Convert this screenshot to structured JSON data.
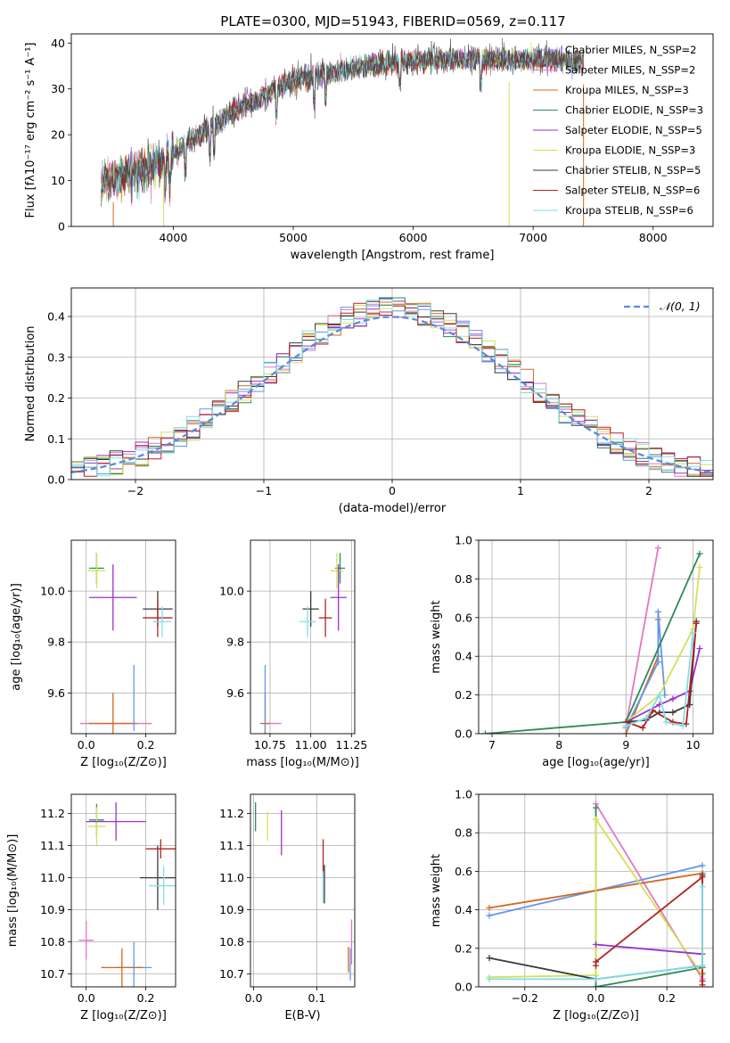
{
  "figure": {
    "title": "PLATE=0300, MJD=51943, FIBERID=0569, z=0.117"
  },
  "chart_data": [
    {
      "id": "spectrum",
      "type": "line",
      "title": "PLATE=0300, MJD=51943, FIBERID=0569, z=0.117",
      "xlabel": "wavelength [Angstrom, rest frame]",
      "ylabel": "Flux [fλ10⁻¹⁷ erg cm⁻² s⁻¹ A⁻¹]",
      "xlim": [
        3150,
        8500
      ],
      "ylim": [
        0,
        42
      ],
      "xticks": [
        4000,
        5000,
        6000,
        7000,
        8000
      ],
      "yticks": [
        0,
        10,
        20,
        30,
        40
      ],
      "grid": false,
      "legend_position": "right",
      "spectrum_x_range": [
        3400,
        7420
      ],
      "spectrum_shape": [
        [
          3400,
          9
        ],
        [
          3600,
          11.5
        ],
        [
          3800,
          13
        ],
        [
          3950,
          14.5
        ],
        [
          4100,
          18
        ],
        [
          4300,
          21.5
        ],
        [
          4500,
          25
        ],
        [
          4800,
          29
        ],
        [
          5000,
          32
        ],
        [
          5300,
          33.5
        ],
        [
          5600,
          35
        ],
        [
          6000,
          36
        ],
        [
          6300,
          36.3
        ],
        [
          6600,
          36.5
        ],
        [
          7000,
          36.4
        ],
        [
          7420,
          36
        ]
      ],
      "series": [
        {
          "name": "Chabrier MILES, N_SSP=2",
          "color": "#6495ed"
        },
        {
          "name": "Salpeter MILES, N_SSP=2",
          "color": "#e377c2"
        },
        {
          "name": "Kroupa MILES, N_SSP=3",
          "color": "#d2691e"
        },
        {
          "name": "Chabrier ELODIE, N_SSP=3",
          "color": "#2e8b57"
        },
        {
          "name": "Salpeter ELODIE, N_SSP=5",
          "color": "#9932cc"
        },
        {
          "name": "Kroupa ELODIE, N_SSP=3",
          "color": "#d4e157"
        },
        {
          "name": "Chabrier STELIB, N_SSP=5",
          "color": "#3a3a3a"
        },
        {
          "name": "Salpeter STELIB, N_SSP=6",
          "color": "#b22222"
        },
        {
          "name": "Kroupa STELIB, N_SSP=6",
          "color": "#80deea"
        }
      ]
    },
    {
      "id": "residuals",
      "type": "bar",
      "xlabel": "(data-model)/error",
      "ylabel": "Normed distribution",
      "xlim": [
        -2.5,
        2.5
      ],
      "ylim": [
        0,
        0.47
      ],
      "xticks": [
        -2,
        -1,
        0,
        1,
        2
      ],
      "yticks": [
        0.0,
        0.1,
        0.2,
        0.3,
        0.4
      ],
      "grid": true,
      "legend_position": "top-right",
      "reference": {
        "name": "𝒩(0, 1)",
        "mean": 0,
        "sigma": 1,
        "color": "#5b8bd9"
      },
      "bin_width": 0.1,
      "series_colors": [
        "#6495ed",
        "#e377c2",
        "#d2691e",
        "#2e8b57",
        "#9932cc",
        "#d4e157",
        "#3a3a3a",
        "#b22222",
        "#80deea"
      ]
    },
    {
      "id": "age-vs-Z",
      "type": "scatter",
      "xlabel": "Z [log₁₀(Z/Z⊙)]",
      "ylabel": "age  [log₁₀(age/yr)]",
      "xlim": [
        -0.05,
        0.3
      ],
      "ylim": [
        9.44,
        10.2
      ],
      "xticks": [
        0.0,
        0.2
      ],
      "yticks": [
        9.6,
        9.8,
        10.0
      ],
      "grid": true,
      "points": [
        {
          "x": 0.1,
          "y": 9.48,
          "xerr": 0.12,
          "yerr": 0.0,
          "color": "#e377c2"
        },
        {
          "x": 0.09,
          "y": 9.48,
          "xerr": 0.08,
          "yerr": 0.12,
          "color": "#d2691e"
        },
        {
          "x": 0.16,
          "y": 9.58,
          "xerr": 0.0,
          "yerr": 0.13,
          "color": "#6495ed"
        },
        {
          "x": 0.035,
          "y": 10.09,
          "xerr": 0.025,
          "yerr": 0.06,
          "color": "#2e8b57"
        },
        {
          "x": 0.035,
          "y": 10.08,
          "xerr": 0.03,
          "yerr": 0.07,
          "color": "#d4e157"
        },
        {
          "x": 0.09,
          "y": 9.975,
          "xerr": 0.08,
          "yerr": 0.13,
          "color": "#9932cc"
        },
        {
          "x": 0.24,
          "y": 9.93,
          "xerr": 0.05,
          "yerr": 0.07,
          "color": "#3a3a3a"
        },
        {
          "x": 0.24,
          "y": 9.895,
          "xerr": 0.05,
          "yerr": 0.075,
          "color": "#b22222"
        },
        {
          "x": 0.255,
          "y": 9.88,
          "xerr": 0.03,
          "yerr": 0.06,
          "color": "#80deea"
        }
      ]
    },
    {
      "id": "age-vs-mass",
      "type": "scatter",
      "xlabel": "mass [log₁₀(M/M⊙)]",
      "ylabel": "",
      "xlim": [
        10.63,
        11.27
      ],
      "ylim": [
        9.44,
        10.2
      ],
      "xticks": [
        10.75,
        11.0,
        11.25
      ],
      "yticks": [
        9.6,
        9.8,
        10.0
      ],
      "grid": true,
      "points": [
        {
          "x": 10.77,
          "y": 9.48,
          "xerr": 0.05,
          "yerr": 0.0,
          "color": "#e377c2"
        },
        {
          "x": 10.72,
          "y": 9.48,
          "xerr": 0.03,
          "yerr": 0.12,
          "color": "#d2691e"
        },
        {
          "x": 10.72,
          "y": 9.58,
          "xerr": 0.0,
          "yerr": 0.13,
          "color": "#6495ed"
        },
        {
          "x": 11.18,
          "y": 10.09,
          "xerr": 0.03,
          "yerr": 0.06,
          "color": "#2e8b57"
        },
        {
          "x": 11.16,
          "y": 10.08,
          "xerr": 0.04,
          "yerr": 0.07,
          "color": "#d4e157"
        },
        {
          "x": 11.17,
          "y": 9.975,
          "xerr": 0.05,
          "yerr": 0.13,
          "color": "#9932cc"
        },
        {
          "x": 11.0,
          "y": 9.93,
          "xerr": 0.05,
          "yerr": 0.07,
          "color": "#3a3a3a"
        },
        {
          "x": 11.09,
          "y": 9.895,
          "xerr": 0.04,
          "yerr": 0.075,
          "color": "#b22222"
        },
        {
          "x": 10.98,
          "y": 9.88,
          "xerr": 0.05,
          "yerr": 0.06,
          "color": "#80deea"
        }
      ]
    },
    {
      "id": "weight-vs-age",
      "type": "line",
      "xlabel": "age  [log₁₀(age/yr)]",
      "ylabel": "mass weight",
      "xlim": [
        6.8,
        10.3
      ],
      "ylim": [
        0,
        1.0
      ],
      "xticks": [
        7,
        8,
        9,
        10
      ],
      "yticks": [
        0.0,
        0.2,
        0.4,
        0.6,
        0.8,
        1.0
      ],
      "grid": true,
      "series": [
        {
          "color": "#e377c2",
          "x": [
            9.0,
            9.48
          ],
          "y": [
            0.04,
            0.96
          ]
        },
        {
          "color": "#d2691e",
          "x": [
            9.0,
            9.48,
            9.48
          ],
          "y": [
            0.0,
            0.4,
            0.59
          ]
        },
        {
          "color": "#6495ed",
          "x": [
            9.0,
            9.48,
            9.48,
            9.58
          ],
          "y": [
            0.03,
            0.37,
            0.63,
            0.2
          ]
        },
        {
          "color": "#2e8b57",
          "x": [
            6.9,
            9.0,
            10.1
          ],
          "y": [
            0.0,
            0.06,
            0.93
          ]
        },
        {
          "color": "#d4e157",
          "x": [
            9.0,
            9.5,
            10.0,
            10.1
          ],
          "y": [
            0.06,
            0.2,
            0.54,
            0.86
          ]
        },
        {
          "color": "#9932cc",
          "x": [
            9.0,
            9.5,
            9.7,
            9.95,
            10.1
          ],
          "y": [
            0.06,
            0.15,
            0.18,
            0.22,
            0.44
          ]
        },
        {
          "color": "#3a3a3a",
          "x": [
            9.0,
            9.3,
            9.5,
            9.7,
            9.95,
            10.05
          ],
          "y": [
            0.06,
            0.07,
            0.11,
            0.11,
            0.15,
            0.58
          ]
        },
        {
          "color": "#b22222",
          "x": [
            9.0,
            9.25,
            9.4,
            9.7,
            9.9,
            10.05
          ],
          "y": [
            0.06,
            0.03,
            0.12,
            0.06,
            0.05,
            0.57
          ]
        },
        {
          "color": "#80deea",
          "x": [
            9.0,
            9.3,
            9.5,
            9.6,
            9.85,
            10.0
          ],
          "y": [
            0.04,
            0.08,
            0.2,
            0.06,
            0.04,
            0.52
          ]
        }
      ]
    },
    {
      "id": "mass-vs-Z",
      "type": "scatter",
      "xlabel": "Z [log₁₀(Z/Z⊙)]",
      "ylabel": "mass [log₁₀(M/M⊙)]",
      "xlim": [
        -0.05,
        0.3
      ],
      "ylim": [
        10.66,
        11.26
      ],
      "xticks": [
        0.0,
        0.2
      ],
      "yticks": [
        10.7,
        10.8,
        10.9,
        11.0,
        11.1,
        11.2
      ],
      "grid": true,
      "points": [
        {
          "x": 0.0,
          "y": 10.805,
          "xerr": 0.025,
          "yerr": 0.06,
          "color": "#e377c2"
        },
        {
          "x": 0.16,
          "y": 10.72,
          "xerr": 0.06,
          "yerr": 0.08,
          "color": "#6495ed"
        },
        {
          "x": 0.12,
          "y": 10.72,
          "xerr": 0.07,
          "yerr": 0.06,
          "color": "#d2691e"
        },
        {
          "x": 0.035,
          "y": 11.18,
          "xerr": 0.025,
          "yerr": 0.05,
          "color": "#2e8b57"
        },
        {
          "x": 0.035,
          "y": 11.16,
          "xerr": 0.03,
          "yerr": 0.06,
          "color": "#d4e157"
        },
        {
          "x": 0.1,
          "y": 11.175,
          "xerr": 0.1,
          "yerr": 0.06,
          "color": "#9932cc"
        },
        {
          "x": 0.24,
          "y": 11.0,
          "xerr": 0.06,
          "yerr": 0.1,
          "color": "#3a3a3a"
        },
        {
          "x": 0.25,
          "y": 11.09,
          "xerr": 0.05,
          "yerr": 0.03,
          "color": "#b22222"
        },
        {
          "x": 0.26,
          "y": 10.975,
          "xerr": 0.05,
          "yerr": 0.06,
          "color": "#80deea"
        }
      ]
    },
    {
      "id": "mass-vs-ebv",
      "type": "scatter",
      "xlabel": "E(B-V)",
      "ylabel": "",
      "xlim": [
        -0.005,
        0.16
      ],
      "ylim": [
        10.66,
        11.26
      ],
      "xticks": [
        0.0,
        0.1
      ],
      "yticks": [
        10.7,
        10.8,
        10.9,
        11.0,
        11.1,
        11.2
      ],
      "grid": true,
      "points": [
        {
          "x": 0.155,
          "y": 10.8,
          "xerr": 0.0,
          "yerr": 0.07,
          "color": "#e377c2"
        },
        {
          "x": 0.15,
          "y": 10.745,
          "xerr": 0.0,
          "yerr": 0.04,
          "color": "#d2691e"
        },
        {
          "x": 0.153,
          "y": 10.73,
          "xerr": 0.0,
          "yerr": 0.05,
          "color": "#6495ed"
        },
        {
          "x": 0.003,
          "y": 11.19,
          "xerr": 0.0,
          "yerr": 0.045,
          "color": "#2e8b57"
        },
        {
          "x": 0.022,
          "y": 11.16,
          "xerr": 0.0,
          "yerr": 0.045,
          "color": "#d4e157"
        },
        {
          "x": 0.044,
          "y": 11.14,
          "xerr": 0.0,
          "yerr": 0.07,
          "color": "#9932cc"
        },
        {
          "x": 0.112,
          "y": 10.98,
          "xerr": 0.0,
          "yerr": 0.06,
          "color": "#3a3a3a"
        },
        {
          "x": 0.11,
          "y": 11.06,
          "xerr": 0.0,
          "yerr": 0.06,
          "color": "#b22222"
        },
        {
          "x": 0.11,
          "y": 10.97,
          "xerr": 0.0,
          "yerr": 0.05,
          "color": "#80deea"
        }
      ]
    },
    {
      "id": "weight-vs-Z",
      "type": "line",
      "xlabel": "Z [log₁₀(Z/Z⊙)]",
      "ylabel": "mass weight",
      "xlim": [
        -0.33,
        0.33
      ],
      "ylim": [
        0,
        1.0
      ],
      "xticks": [
        -0.2,
        0.0,
        0.2
      ],
      "yticks": [
        0.0,
        0.2,
        0.4,
        0.6,
        0.8,
        1.0
      ],
      "grid": true,
      "series": [
        {
          "color": "#e377c2",
          "x": [
            0.0,
            0.3
          ],
          "y": [
            0.95,
            0.04
          ]
        },
        {
          "color": "#6495ed",
          "x": [
            -0.3,
            0.0,
            0.3
          ],
          "y": [
            0.37,
            0.5,
            0.63
          ]
        },
        {
          "color": "#d2691e",
          "x": [
            -0.3,
            0.0,
            0.3
          ],
          "y": [
            0.41,
            0.5,
            0.59
          ]
        },
        {
          "color": "#2e8b57",
          "x": [
            0.0,
            0.0,
            0.3,
            0.3
          ],
          "y": [
            0.93,
            0.0,
            0.1,
            0.07
          ]
        },
        {
          "color": "#d4e157",
          "x": [
            -0.3,
            0.0,
            0.0,
            0.3,
            0.3
          ],
          "y": [
            0.05,
            0.06,
            0.87,
            0.06,
            0.2
          ]
        },
        {
          "color": "#9932cc",
          "x": [
            0.0,
            0.3
          ],
          "y": [
            0.22,
            0.17
          ]
        },
        {
          "color": "#3a3a3a",
          "x": [
            -0.3,
            0.0,
            0.3,
            0.3
          ],
          "y": [
            0.15,
            0.04,
            0.11,
            0.58
          ]
        },
        {
          "color": "#b22222",
          "x": [
            0.0,
            0.0,
            0.3,
            0.3,
            0.3
          ],
          "y": [
            0.11,
            0.13,
            0.57,
            0.03,
            0.01
          ]
        },
        {
          "color": "#80deea",
          "x": [
            -0.3,
            0.0,
            0.3,
            0.3
          ],
          "y": [
            0.04,
            0.04,
            0.11,
            0.52
          ]
        }
      ]
    }
  ]
}
